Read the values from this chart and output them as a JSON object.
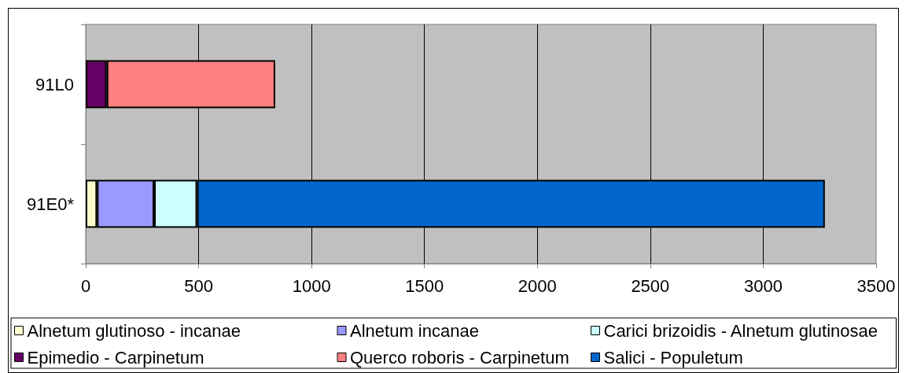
{
  "chart_data": {
    "type": "bar",
    "orientation": "horizontal",
    "stacked": true,
    "categories": [
      "91L0",
      "91E0*"
    ],
    "series": [
      {
        "name": "Alnetum glutinoso - incanae",
        "color": "#ffffcc",
        "values": [
          null,
          50
        ]
      },
      {
        "name": "Alnetum incanae",
        "color": "#9999ff",
        "values": [
          null,
          253
        ]
      },
      {
        "name": "Carici brizoidis - Alnetum glutinosae",
        "color": "#ccffff",
        "values": [
          null,
          190
        ]
      },
      {
        "name": "Epimedio - Carpinetum",
        "color": "#660066",
        "values": [
          93,
          null
        ]
      },
      {
        "name": "Querco roboris - Carpinetum",
        "color": "#ff8080",
        "values": [
          746,
          null
        ]
      },
      {
        "name": "Salici - Populetum",
        "color": "#0066cc",
        "values": [
          null,
          2780
        ]
      }
    ],
    "xlim": [
      0,
      3500
    ],
    "xticks": [
      0,
      500,
      1000,
      1500,
      2000,
      2500,
      3000,
      3500
    ],
    "grid": "x",
    "legend": "bottom"
  }
}
